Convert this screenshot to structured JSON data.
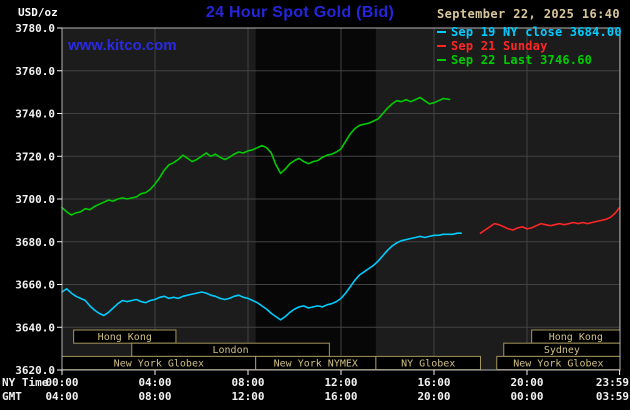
{
  "header": {
    "unit": "USD/oz",
    "title": "24 Hour Spot Gold (Bid)",
    "watermark": "www.kitco.com",
    "timestamp": "September 22, 2025 16:40"
  },
  "axis": {
    "ny_label": "NY Time",
    "gmt_label": "GMT",
    "y_ticks": [
      3780,
      3760,
      3740,
      3720,
      3700,
      3680,
      3660,
      3640,
      3620
    ],
    "x_ticks": [
      {
        "h": 0,
        "ny": "00:00",
        "gmt": "04:00"
      },
      {
        "h": 4,
        "ny": "04:00",
        "gmt": "08:00"
      },
      {
        "h": 8,
        "ny": "08:00",
        "gmt": "12:00"
      },
      {
        "h": 12,
        "ny": "12:00",
        "gmt": "16:00"
      },
      {
        "h": 16,
        "ny": "16:00",
        "gmt": "20:00"
      },
      {
        "h": 20,
        "ny": "20:00",
        "gmt": "00:00"
      },
      {
        "h": 23.983,
        "ny": "23:59",
        "gmt": "03:59"
      }
    ]
  },
  "band": {
    "start": 8.33,
    "end": 13.5
  },
  "sessions": [
    {
      "label": "Hong Kong",
      "row": 0,
      "start": 0.5,
      "end": 4.9
    },
    {
      "label": "Hong Kong",
      "row": 0,
      "start": 20.2,
      "end": 24
    },
    {
      "label": "London",
      "row": 1,
      "start": 3.0,
      "end": 11.5
    },
    {
      "label": "Sydney",
      "row": 1,
      "start": 19.0,
      "end": 24
    },
    {
      "label": "New York Globex",
      "row": 2,
      "start": 0,
      "end": 8.33
    },
    {
      "label": "New York NYMEX",
      "row": 2,
      "start": 8.33,
      "end": 13.5
    },
    {
      "label": "NY Globex",
      "row": 2,
      "start": 13.5,
      "end": 18.0
    },
    {
      "label": "New York Globex",
      "row": 2,
      "start": 18.7,
      "end": 24
    }
  ],
  "colors": {
    "background": "#000000",
    "plot_bg": "#1c1c1c",
    "band_bg": "#070707",
    "grid": "#424242",
    "border": "#b5b5b5",
    "title_blue": "#2525dd",
    "timestamp_tan": "#d9c79b",
    "session_border": "#a2945a",
    "session_text": "#cfc083",
    "axis_text": "#f2f2f2",
    "cyan": "#00ccff",
    "red": "#ff2626",
    "green": "#00cc00"
  },
  "chart_data": {
    "type": "line",
    "title": "24 Hour Spot Gold (Bid)",
    "ylabel": "USD/oz",
    "xlabel": "NY Time / GMT",
    "ylim": [
      3620,
      3780
    ],
    "xlim": [
      0,
      24
    ],
    "grid": true,
    "legend_position": "top-right",
    "series": [
      {
        "id": "sep19",
        "name": "Sep 19 NY close 3684.00",
        "color": "#00ccff",
        "points": [
          [
            0,
            3656.5
          ],
          [
            0.2,
            3658
          ],
          [
            0.4,
            3656
          ],
          [
            0.6,
            3654.5
          ],
          [
            0.8,
            3653.5
          ],
          [
            1,
            3652.5
          ],
          [
            1.2,
            3650
          ],
          [
            1.4,
            3648
          ],
          [
            1.6,
            3646.5
          ],
          [
            1.8,
            3645.5
          ],
          [
            2,
            3647
          ],
          [
            2.2,
            3649
          ],
          [
            2.4,
            3651
          ],
          [
            2.6,
            3652.5
          ],
          [
            2.8,
            3652
          ],
          [
            3,
            3652.5
          ],
          [
            3.2,
            3653
          ],
          [
            3.4,
            3652
          ],
          [
            3.6,
            3651.5
          ],
          [
            3.8,
            3652.5
          ],
          [
            4,
            3653
          ],
          [
            4.2,
            3654
          ],
          [
            4.4,
            3654.5
          ],
          [
            4.6,
            3653.5
          ],
          [
            4.8,
            3654
          ],
          [
            5,
            3653.5
          ],
          [
            5.2,
            3654.5
          ],
          [
            5.4,
            3655
          ],
          [
            5.6,
            3655.5
          ],
          [
            5.8,
            3656
          ],
          [
            6,
            3656.5
          ],
          [
            6.2,
            3656
          ],
          [
            6.4,
            3655
          ],
          [
            6.6,
            3654.5
          ],
          [
            6.8,
            3653.5
          ],
          [
            7,
            3653
          ],
          [
            7.2,
            3653.5
          ],
          [
            7.4,
            3654.5
          ],
          [
            7.6,
            3655
          ],
          [
            7.8,
            3654
          ],
          [
            8,
            3653.5
          ],
          [
            8.2,
            3652.5
          ],
          [
            8.4,
            3651.5
          ],
          [
            8.6,
            3650
          ],
          [
            8.8,
            3648.5
          ],
          [
            9,
            3646.5
          ],
          [
            9.2,
            3645
          ],
          [
            9.4,
            3643.5
          ],
          [
            9.6,
            3645
          ],
          [
            9.8,
            3647
          ],
          [
            10,
            3648.5
          ],
          [
            10.2,
            3649.5
          ],
          [
            10.4,
            3650
          ],
          [
            10.6,
            3649
          ],
          [
            10.8,
            3649.5
          ],
          [
            11,
            3650
          ],
          [
            11.2,
            3649.5
          ],
          [
            11.4,
            3650.5
          ],
          [
            11.6,
            3651
          ],
          [
            11.8,
            3652
          ],
          [
            12,
            3653.5
          ],
          [
            12.2,
            3656
          ],
          [
            12.4,
            3659
          ],
          [
            12.6,
            3662
          ],
          [
            12.8,
            3664.5
          ],
          [
            13,
            3666
          ],
          [
            13.2,
            3667.5
          ],
          [
            13.4,
            3669
          ],
          [
            13.6,
            3671
          ],
          [
            13.8,
            3673.5
          ],
          [
            14,
            3676
          ],
          [
            14.2,
            3678
          ],
          [
            14.4,
            3679.5
          ],
          [
            14.6,
            3680.5
          ],
          [
            14.8,
            3681
          ],
          [
            15,
            3681.5
          ],
          [
            15.2,
            3682
          ],
          [
            15.4,
            3682.5
          ],
          [
            15.6,
            3682
          ],
          [
            15.8,
            3682.5
          ],
          [
            16,
            3683
          ],
          [
            16.2,
            3683
          ],
          [
            16.4,
            3683.5
          ],
          [
            16.6,
            3683.5
          ],
          [
            16.8,
            3683.5
          ],
          [
            17,
            3684
          ],
          [
            17.17,
            3684
          ]
        ]
      },
      {
        "id": "sep21",
        "name": "Sep 21 Sunday",
        "color": "#ff2626",
        "points": [
          [
            18,
            3684
          ],
          [
            18.2,
            3685.5
          ],
          [
            18.4,
            3687
          ],
          [
            18.6,
            3688.5
          ],
          [
            18.8,
            3688
          ],
          [
            19,
            3687
          ],
          [
            19.2,
            3686
          ],
          [
            19.4,
            3685.5
          ],
          [
            19.6,
            3686.5
          ],
          [
            19.8,
            3687
          ],
          [
            20,
            3686
          ],
          [
            20.2,
            3686.5
          ],
          [
            20.4,
            3687.5
          ],
          [
            20.6,
            3688.5
          ],
          [
            20.8,
            3688
          ],
          [
            21,
            3687.5
          ],
          [
            21.2,
            3688
          ],
          [
            21.4,
            3688.5
          ],
          [
            21.6,
            3688
          ],
          [
            21.8,
            3688.5
          ],
          [
            22,
            3689
          ],
          [
            22.2,
            3688.5
          ],
          [
            22.4,
            3689
          ],
          [
            22.6,
            3688.5
          ],
          [
            22.8,
            3689
          ],
          [
            23,
            3689.5
          ],
          [
            23.2,
            3690
          ],
          [
            23.4,
            3690.5
          ],
          [
            23.6,
            3691.5
          ],
          [
            23.8,
            3693.5
          ],
          [
            23.98,
            3696
          ]
        ]
      },
      {
        "id": "sep22",
        "name": "Sep 22 Last 3746.60",
        "color": "#00cc00",
        "points": [
          [
            0,
            3696
          ],
          [
            0.2,
            3694
          ],
          [
            0.4,
            3692.5
          ],
          [
            0.6,
            3693.5
          ],
          [
            0.8,
            3694
          ],
          [
            1,
            3695.5
          ],
          [
            1.2,
            3695
          ],
          [
            1.4,
            3696.5
          ],
          [
            1.6,
            3697.5
          ],
          [
            1.8,
            3698.5
          ],
          [
            2,
            3699.5
          ],
          [
            2.2,
            3699
          ],
          [
            2.4,
            3700
          ],
          [
            2.6,
            3700.5
          ],
          [
            2.8,
            3700
          ],
          [
            3,
            3700.5
          ],
          [
            3.2,
            3701
          ],
          [
            3.4,
            3702.5
          ],
          [
            3.6,
            3703
          ],
          [
            3.8,
            3704.5
          ],
          [
            4,
            3707
          ],
          [
            4.2,
            3710
          ],
          [
            4.4,
            3713.5
          ],
          [
            4.6,
            3716
          ],
          [
            4.8,
            3717
          ],
          [
            5,
            3718.5
          ],
          [
            5.2,
            3720.5
          ],
          [
            5.4,
            3719
          ],
          [
            5.6,
            3717.5
          ],
          [
            5.8,
            3718.5
          ],
          [
            6,
            3720
          ],
          [
            6.2,
            3721.5
          ],
          [
            6.4,
            3720
          ],
          [
            6.6,
            3721
          ],
          [
            6.8,
            3719.5
          ],
          [
            7,
            3718.5
          ],
          [
            7.2,
            3719.5
          ],
          [
            7.4,
            3721
          ],
          [
            7.6,
            3722
          ],
          [
            7.8,
            3721.5
          ],
          [
            8,
            3722.5
          ],
          [
            8.2,
            3723
          ],
          [
            8.4,
            3724
          ],
          [
            8.6,
            3725
          ],
          [
            8.8,
            3724
          ],
          [
            9,
            3721.5
          ],
          [
            9.2,
            3716
          ],
          [
            9.4,
            3712
          ],
          [
            9.6,
            3714
          ],
          [
            9.8,
            3716.5
          ],
          [
            10,
            3718
          ],
          [
            10.2,
            3719
          ],
          [
            10.4,
            3717.5
          ],
          [
            10.6,
            3716.5
          ],
          [
            10.8,
            3717.5
          ],
          [
            11,
            3718
          ],
          [
            11.2,
            3719.5
          ],
          [
            11.4,
            3720.5
          ],
          [
            11.6,
            3721
          ],
          [
            11.8,
            3722
          ],
          [
            12,
            3723.5
          ],
          [
            12.2,
            3727
          ],
          [
            12.4,
            3730.5
          ],
          [
            12.6,
            3733
          ],
          [
            12.8,
            3734.5
          ],
          [
            13,
            3735
          ],
          [
            13.2,
            3735.5
          ],
          [
            13.4,
            3736.5
          ],
          [
            13.6,
            3737.5
          ],
          [
            13.8,
            3740
          ],
          [
            14,
            3742.5
          ],
          [
            14.2,
            3744.5
          ],
          [
            14.4,
            3746
          ],
          [
            14.6,
            3745.5
          ],
          [
            14.8,
            3746.5
          ],
          [
            15,
            3745.5
          ],
          [
            15.2,
            3746.5
          ],
          [
            15.4,
            3747.5
          ],
          [
            15.6,
            3746
          ],
          [
            15.8,
            3744.5
          ],
          [
            16,
            3745
          ],
          [
            16.2,
            3746
          ],
          [
            16.4,
            3747
          ],
          [
            16.67,
            3746.6
          ]
        ]
      }
    ]
  }
}
